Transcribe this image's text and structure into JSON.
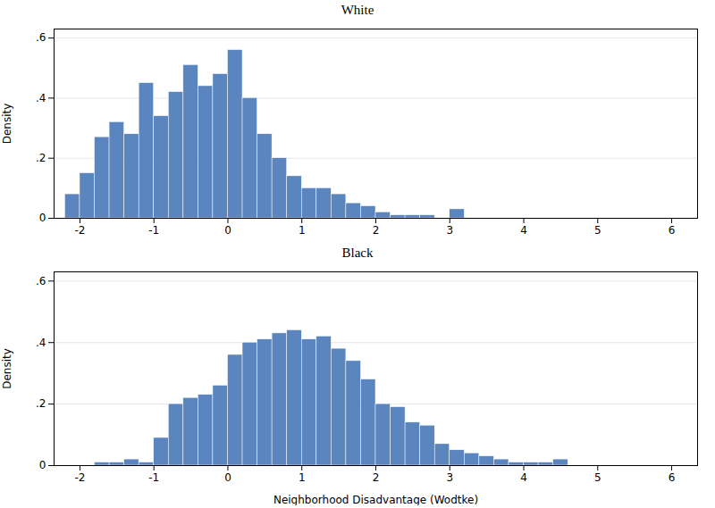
{
  "chart_data": [
    {
      "type": "histogram",
      "title": "White",
      "ylabel": "Density",
      "color": "#5b85bf",
      "bins": [
        -2.2,
        -2.0,
        -1.8,
        -1.6,
        -1.4,
        -1.2,
        -1.0,
        -0.8,
        -0.6,
        -0.4,
        -0.2,
        0.0,
        0.2,
        0.4,
        0.6,
        0.8,
        1.0,
        1.2,
        1.4,
        1.6,
        1.8,
        2.0,
        2.2,
        2.4,
        2.6,
        2.8,
        3.0,
        3.2,
        3.4
      ],
      "values": [
        0.08,
        0.15,
        0.27,
        0.32,
        0.28,
        0.45,
        0.34,
        0.42,
        0.51,
        0.44,
        0.48,
        0.56,
        0.4,
        0.28,
        0.2,
        0.14,
        0.1,
        0.1,
        0.08,
        0.05,
        0.04,
        0.02,
        0.01,
        0.01,
        0.01,
        0.0,
        0.03,
        0.0
      ],
      "xlim": [
        -2.35,
        6.35
      ],
      "xticks": [
        -2,
        -1,
        0,
        1,
        2,
        3,
        4,
        5,
        6
      ],
      "ylim": [
        0,
        0.63
      ],
      "yticks": [
        0,
        {
          "value": 0.2,
          "label": ".2"
        },
        {
          "value": 0.4,
          "label": ".4"
        },
        {
          "value": 0.6,
          "label": ".6"
        }
      ],
      "grid": true
    },
    {
      "type": "histogram",
      "title": "Black",
      "xlabel": "Neighborhood Disadvantage (Wodtke)",
      "ylabel": "Density",
      "color": "#5b85bf",
      "bins": [
        -1.8,
        -1.6,
        -1.4,
        -1.2,
        -1.0,
        -0.8,
        -0.6,
        -0.4,
        -0.2,
        0.0,
        0.2,
        0.4,
        0.6,
        0.8,
        1.0,
        1.2,
        1.4,
        1.6,
        1.8,
        2.0,
        2.2,
        2.4,
        2.6,
        2.8,
        3.0,
        3.2,
        3.4,
        3.6,
        3.8,
        4.0,
        4.2,
        4.4,
        4.6
      ],
      "values": [
        0.01,
        0.01,
        0.02,
        0.01,
        0.09,
        0.2,
        0.22,
        0.23,
        0.26,
        0.36,
        0.4,
        0.41,
        0.43,
        0.44,
        0.41,
        0.42,
        0.38,
        0.34,
        0.28,
        0.2,
        0.19,
        0.14,
        0.13,
        0.07,
        0.05,
        0.04,
        0.03,
        0.02,
        0.01,
        0.01,
        0.01,
        0.02
      ],
      "xlim": [
        -2.35,
        6.35
      ],
      "xticks": [
        -2,
        -1,
        0,
        1,
        2,
        3,
        4,
        5,
        6
      ],
      "ylim": [
        0,
        0.63
      ],
      "yticks": [
        0,
        {
          "value": 0.2,
          "label": ".2"
        },
        {
          "value": 0.4,
          "label": ".4"
        },
        {
          "value": 0.6,
          "label": ".6"
        }
      ],
      "grid": true
    }
  ]
}
